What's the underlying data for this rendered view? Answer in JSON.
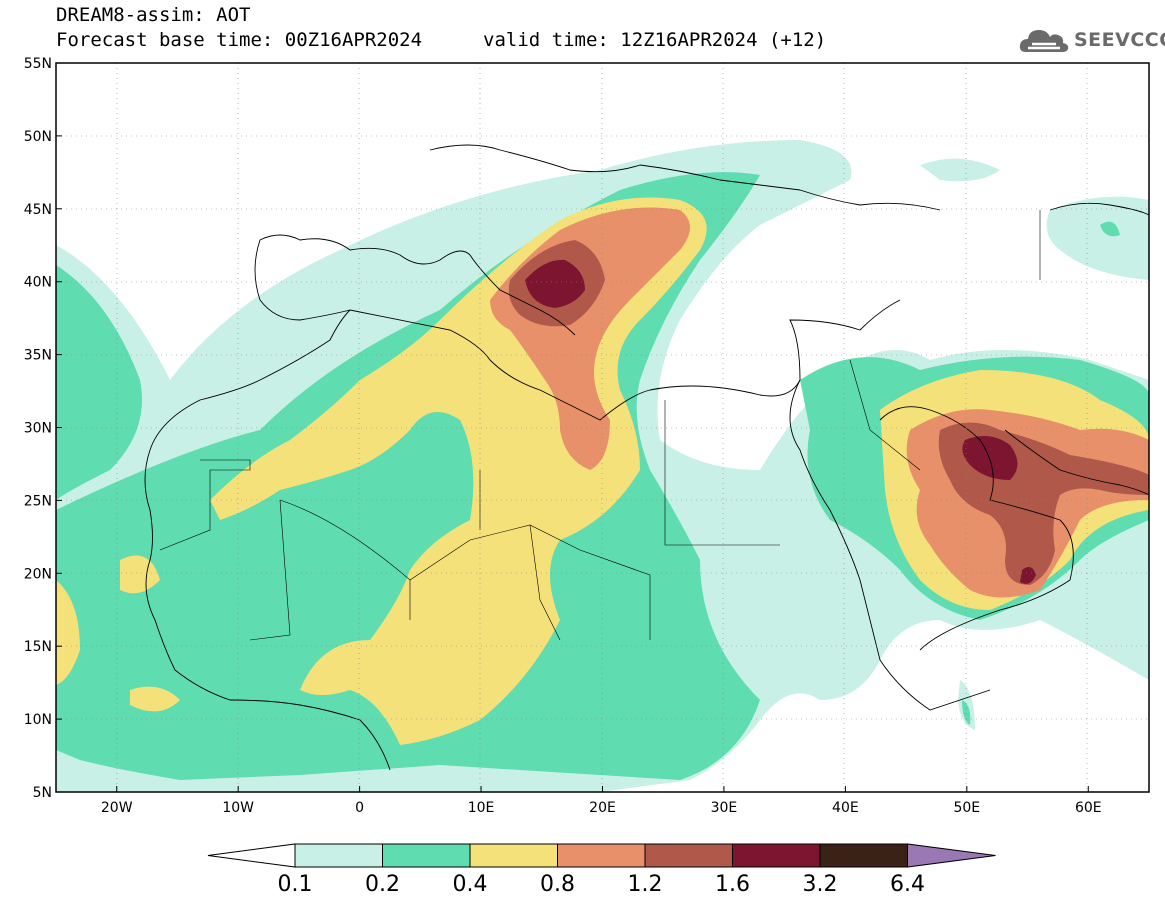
{
  "header": {
    "title": "DREAM8-assim: AOT",
    "base_time": "Forecast base time: 00Z16APR2024",
    "valid_time": "valid time: 12Z16APR2024 (+12)"
  },
  "logo": {
    "text": "SEEVCCC",
    "icon": "cloud-icon",
    "color": "#6a6a6a"
  },
  "axes": {
    "lat_labels": [
      "55N",
      "50N",
      "45N",
      "40N",
      "35N",
      "30N",
      "25N",
      "20N",
      "15N",
      "10N",
      "5N"
    ],
    "lat_values": [
      55,
      50,
      45,
      40,
      35,
      30,
      25,
      20,
      15,
      10,
      5
    ],
    "lon_labels": [
      "20W",
      "10W",
      "0",
      "10E",
      "20E",
      "30E",
      "40E",
      "50E",
      "60E"
    ],
    "lon_values": [
      -20,
      -10,
      0,
      10,
      20,
      30,
      40,
      50,
      60
    ],
    "lon_range": [
      -25,
      65
    ],
    "lat_range": [
      5,
      55
    ],
    "grid": true
  },
  "colorbar": {
    "labels": [
      "0.1",
      "0.2",
      "0.4",
      "0.8",
      "1.2",
      "1.6",
      "3.2",
      "6.4"
    ],
    "colors": [
      "#c8f0e6",
      "#5fdcb0",
      "#f5e17a",
      "#e8906a",
      "#b0584a",
      "#7d1530",
      "#3a2216",
      "#9a78b4"
    ],
    "under_color": "#ffffff"
  },
  "fields": {
    "levels_colors": {
      "l1": "#c8f0e6",
      "l2": "#5fdcb0",
      "l3": "#f5e17a",
      "l4": "#e8906a",
      "l5": "#b0584a",
      "l6": "#7d1530"
    }
  }
}
